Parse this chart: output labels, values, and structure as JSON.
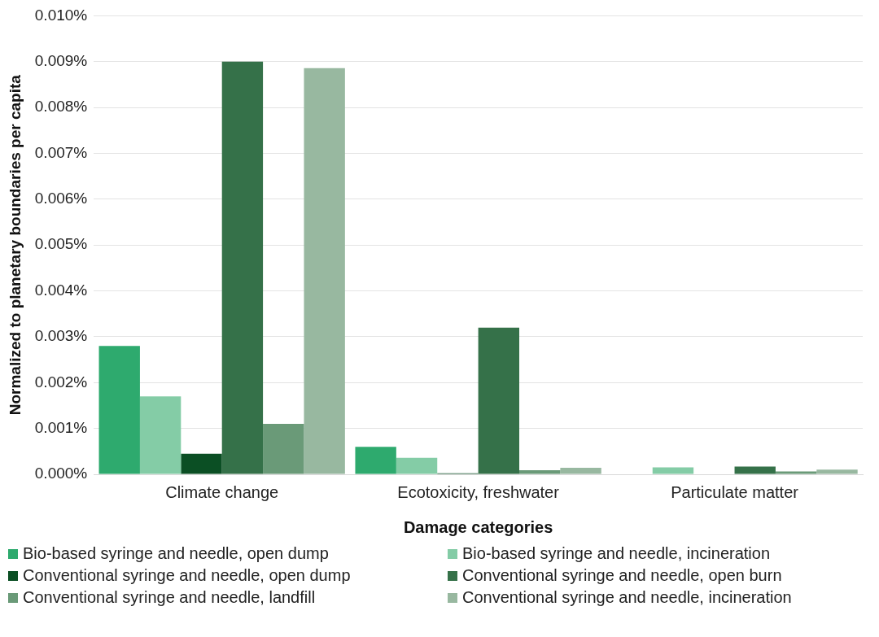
{
  "chart_data": {
    "type": "bar",
    "xlabel": "Damage categories",
    "ylabel": "Normalized to planetary boundaries per capita",
    "categories": [
      "Climate change",
      "Ecotoxicity, freshwater",
      "Particulate matter"
    ],
    "series": [
      {
        "name": "Bio-based syringe and needle, open dump",
        "color": "#2eaa6e",
        "values": [
          0.0028,
          0.0006,
          0
        ]
      },
      {
        "name": "Bio-based syringe and needle, incineration",
        "color": "#84cca6",
        "values": [
          0.0017,
          0.00036,
          0.00015
        ]
      },
      {
        "name": "Conventional syringe and needle, open dump",
        "color": "#0b4f24",
        "values": [
          0.00045,
          2e-05,
          0
        ]
      },
      {
        "name": "Conventional syringe and needle, open burn",
        "color": "#357149",
        "values": [
          0.009,
          0.0032,
          0.00017
        ]
      },
      {
        "name": "Conventional syringe and needle, landfill",
        "color": "#6a9a78",
        "values": [
          0.0011,
          9e-05,
          6e-05
        ]
      },
      {
        "name": "Conventional syringe and needle, incineration",
        "color": "#98b8a0",
        "values": [
          0.00886,
          0.00014,
          0.0001
        ]
      }
    ],
    "ylim": [
      0,
      0.01
    ],
    "yticks": [
      {
        "value": 0,
        "label": "0.000%"
      },
      {
        "value": 0.001,
        "label": "0.001%"
      },
      {
        "value": 0.002,
        "label": "0.002%"
      },
      {
        "value": 0.003,
        "label": "0.003%"
      },
      {
        "value": 0.004,
        "label": "0.004%"
      },
      {
        "value": 0.005,
        "label": "0.005%"
      },
      {
        "value": 0.006,
        "label": "0.006%"
      },
      {
        "value": 0.007,
        "label": "0.007%"
      },
      {
        "value": 0.008,
        "label": "0.008%"
      },
      {
        "value": 0.009,
        "label": "0.009%"
      },
      {
        "value": 0.01,
        "label": "0.010%"
      }
    ],
    "grid": "y",
    "legend": "bottom"
  }
}
